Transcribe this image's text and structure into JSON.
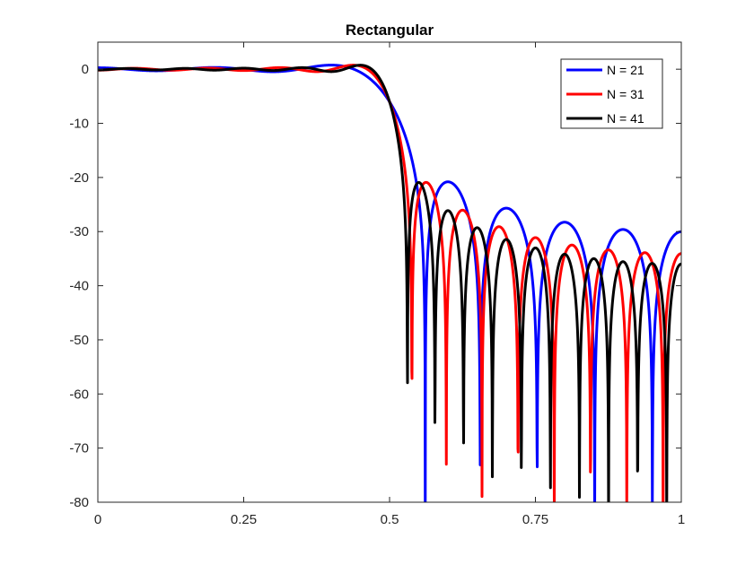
{
  "chart_data": {
    "type": "line",
    "title": "Rectangular",
    "xlabel": "",
    "ylabel": "",
    "xlim": [
      0,
      1
    ],
    "ylim": [
      -80,
      5
    ],
    "xticks": [
      0,
      0.25,
      0.5,
      0.75,
      1
    ],
    "xtick_labels": [
      "0",
      "0.25",
      "0.5",
      "0.75",
      "1"
    ],
    "yticks": [
      0,
      -10,
      -20,
      -30,
      -40,
      -50,
      -60,
      -70,
      -80
    ],
    "ytick_labels": [
      "0",
      "-10",
      "-20",
      "-30",
      "-40",
      "-50",
      "-60",
      "-70",
      "-80"
    ],
    "grid": false,
    "legend_position": "top-right",
    "filter": {
      "cutoff": 0.5,
      "window": "rectangular"
    },
    "series": [
      {
        "name": "N = 21",
        "N": 21,
        "color": "#0000ff"
      },
      {
        "name": "N = 31",
        "N": 31,
        "color": "#ff0000"
      },
      {
        "name": "N = 41",
        "N": 41,
        "color": "#000000"
      }
    ]
  }
}
